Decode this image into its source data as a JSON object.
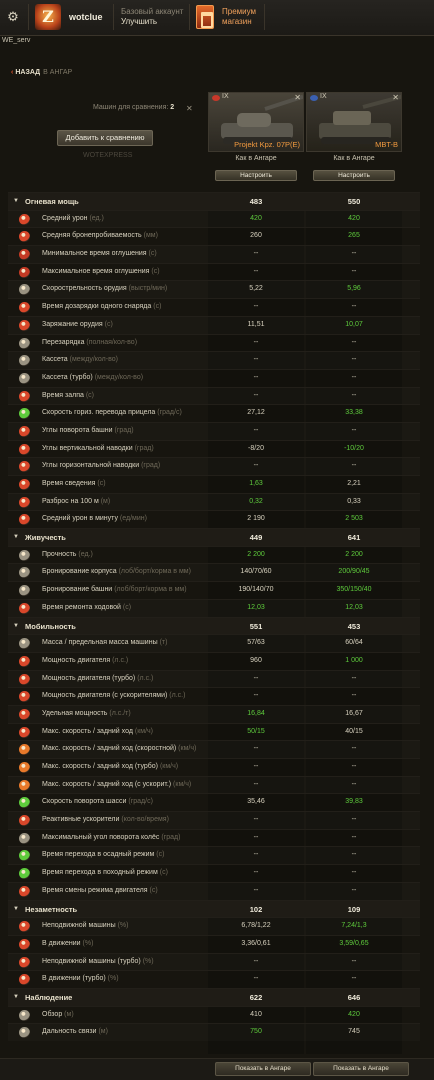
{
  "header": {
    "username": "wotclue",
    "account_line1": "Базовый аккаунт",
    "account_line2": "Улучшить",
    "premium_line1": "Премиум",
    "premium_line2": "магазин",
    "server": "WE_serv"
  },
  "nav": {
    "back": "НАЗАД",
    "back_target": "В АНГАР"
  },
  "compare": {
    "count_label": "Машин для сравнения:",
    "count": "2",
    "add_button": "Добавить к сравнению",
    "placeholder": "WOTEXPRESS"
  },
  "tanks": [
    {
      "name": "Projekt Kpz. 07P(E)",
      "tier": "IX",
      "status": "Как в Ангаре",
      "configure": "Настроить",
      "show": "Показать в Ангаре"
    },
    {
      "name": "MBT-B",
      "tier": "IX",
      "status": "Как в Ангаре",
      "configure": "Настроить",
      "show": "Показать в Ангаре"
    }
  ],
  "rows": [
    {
      "type": "section",
      "label": "Огневая мощь",
      "unit": "",
      "v1": "483",
      "v2": "550",
      "g1": false,
      "g2": false
    },
    {
      "type": "stat",
      "icon": "avg-damage-icon",
      "color": "#d9472a",
      "label": "Средний урон",
      "unit": "(ед.)",
      "v1": "420",
      "v2": "420",
      "g1": true,
      "g2": true
    },
    {
      "type": "stat",
      "icon": "penetration-icon",
      "color": "#d9472a",
      "label": "Средняя бронепробиваемость",
      "unit": "(мм)",
      "v1": "260",
      "v2": "265",
      "g1": false,
      "g2": true
    },
    {
      "type": "stat",
      "icon": "stun-min-icon",
      "color": "#c33a24",
      "label": "Минимальное время оглушения",
      "unit": "(с)",
      "v1": "--",
      "v2": "--",
      "g1": false,
      "g2": false
    },
    {
      "type": "stat",
      "icon": "stun-max-icon",
      "color": "#c33a24",
      "label": "Максимальное время оглушения",
      "unit": "(с)",
      "v1": "--",
      "v2": "--",
      "g1": false,
      "g2": false
    },
    {
      "type": "stat",
      "icon": "rate-of-fire-icon",
      "color": "#9a9382",
      "label": "Скорострельность орудия",
      "unit": "(выстр/мин)",
      "v1": "5,22",
      "v2": "5,96",
      "g1": false,
      "g2": true
    },
    {
      "type": "stat",
      "icon": "shell-reload-icon",
      "color": "#d9472a",
      "label": "Время дозарядки одного снаряда",
      "unit": "(с)",
      "v1": "--",
      "v2": "--",
      "g1": false,
      "g2": false
    },
    {
      "type": "stat",
      "icon": "reload-icon",
      "color": "#d9472a",
      "label": "Заряжание орудия",
      "unit": "(с)",
      "v1": "11,51",
      "v2": "10,07",
      "g1": false,
      "g2": true
    },
    {
      "type": "stat",
      "icon": "recharge-icon",
      "color": "#9a9382",
      "label": "Перезарядка",
      "unit": "(полная/кол-во)",
      "v1": "--",
      "v2": "--",
      "g1": false,
      "g2": false
    },
    {
      "type": "stat",
      "icon": "magazine-icon",
      "color": "#9a9382",
      "label": "Кассета",
      "unit": "(между/кол-во)",
      "v1": "--",
      "v2": "--",
      "g1": false,
      "g2": false
    },
    {
      "type": "stat",
      "icon": "magazine-turbo-icon",
      "color": "#9a9382",
      "label": "Кассета (турбо)",
      "unit": "(между/кол-во)",
      "v1": "--",
      "v2": "--",
      "g1": false,
      "g2": false
    },
    {
      "type": "stat",
      "icon": "salvo-time-icon",
      "color": "#d9472a",
      "label": "Время залпа",
      "unit": "(с)",
      "v1": "--",
      "v2": "--",
      "g1": false,
      "g2": false
    },
    {
      "type": "stat",
      "icon": "traverse-speed-icon",
      "color": "#5ecb3c",
      "label": "Скорость гориз. перевода прицела",
      "unit": "(град/с)",
      "v1": "27,12",
      "v2": "33,38",
      "g1": false,
      "g2": true
    },
    {
      "type": "stat",
      "icon": "turret-angles-icon",
      "color": "#d9472a",
      "label": "Углы поворота башни",
      "unit": "(град)",
      "v1": "--",
      "v2": "--",
      "g1": false,
      "g2": false
    },
    {
      "type": "stat",
      "icon": "vertical-angles-icon",
      "color": "#d9472a",
      "label": "Углы вертикальной наводки",
      "unit": "(град)",
      "v1": "-8/20",
      "v2": "-10/20",
      "g1": false,
      "g2": true
    },
    {
      "type": "stat",
      "icon": "horizontal-angles-icon",
      "color": "#d9472a",
      "label": "Углы горизонтальной наводки",
      "unit": "(град)",
      "v1": "--",
      "v2": "--",
      "g1": false,
      "g2": false
    },
    {
      "type": "stat",
      "icon": "aim-time-icon",
      "color": "#d9472a",
      "label": "Время сведения",
      "unit": "(с)",
      "v1": "1,63",
      "v2": "2,21",
      "g1": true,
      "g2": false
    },
    {
      "type": "stat",
      "icon": "dispersion-icon",
      "color": "#d9472a",
      "label": "Разброс на 100 м",
      "unit": "(м)",
      "v1": "0,32",
      "v2": "0,33",
      "g1": true,
      "g2": false
    },
    {
      "type": "stat",
      "icon": "dpm-icon",
      "color": "#d9472a",
      "label": "Средний урон в минуту",
      "unit": "(ед/мин)",
      "v1": "2 190",
      "v2": "2 503",
      "g1": false,
      "g2": true
    },
    {
      "type": "section",
      "label": "Живучесть",
      "unit": "",
      "v1": "449",
      "v2": "641",
      "g1": false,
      "g2": false
    },
    {
      "type": "stat",
      "icon": "hit-points-icon",
      "color": "#9a9382",
      "label": "Прочность",
      "unit": "(ед.)",
      "v1": "2 200",
      "v2": "2 200",
      "g1": true,
      "g2": true
    },
    {
      "type": "stat",
      "icon": "hull-armor-icon",
      "color": "#9a9382",
      "label": "Бронирование корпуса",
      "unit": "(лоб/борт/корма в мм)",
      "v1": "140/70/60",
      "v2": "200/90/45",
      "g1": false,
      "g2": true
    },
    {
      "type": "stat",
      "icon": "turret-armor-icon",
      "color": "#9a9382",
      "label": "Бронирование башни",
      "unit": "(лоб/борт/корма в мм)",
      "v1": "190/140/70",
      "v2": "350/150/40",
      "g1": false,
      "g2": true
    },
    {
      "type": "stat",
      "icon": "track-repair-icon",
      "color": "#d9472a",
      "label": "Время ремонта ходовой",
      "unit": "(с)",
      "v1": "12,03",
      "v2": "12,03",
      "g1": true,
      "g2": true
    },
    {
      "type": "section",
      "label": "Мобильность",
      "unit": "",
      "v1": "551",
      "v2": "453",
      "g1": false,
      "g2": false
    },
    {
      "type": "stat",
      "icon": "weight-icon",
      "color": "#9a9382",
      "label": "Масса / предельная масса машины",
      "unit": "(т)",
      "v1": "57/63",
      "v2": "60/64",
      "g1": false,
      "g2": false
    },
    {
      "type": "stat",
      "icon": "engine-power-icon",
      "color": "#d9472a",
      "label": "Мощность двигателя",
      "unit": "(л.с.)",
      "v1": "960",
      "v2": "1 000",
      "g1": false,
      "g2": true
    },
    {
      "type": "stat",
      "icon": "engine-turbo-icon",
      "color": "#d9472a",
      "label": "Мощность двигателя (турбо)",
      "unit": "(л.с.)",
      "v1": "--",
      "v2": "--",
      "g1": false,
      "g2": false
    },
    {
      "type": "stat",
      "icon": "engine-rocket-icon",
      "color": "#d9472a",
      "label": "Мощность двигателя (с ускорителями)",
      "unit": "(л.с.)",
      "v1": "--",
      "v2": "--",
      "g1": false,
      "g2": false
    },
    {
      "type": "stat",
      "icon": "specific-power-icon",
      "color": "#d9472a",
      "label": "Удельная мощность",
      "unit": "(л.с./т)",
      "v1": "16,84",
      "v2": "16,67",
      "g1": true,
      "g2": false
    },
    {
      "type": "stat",
      "icon": "speed-icon",
      "color": "#d9472a",
      "label": "Макс. скорость / задний ход",
      "unit": "(км/ч)",
      "v1": "50/15",
      "v2": "40/15",
      "g1": true,
      "g2": false
    },
    {
      "type": "stat",
      "icon": "speed-wheeled-icon",
      "color": "#e8792a",
      "label": "Макс. скорость / задний ход (скоростной)",
      "unit": "(км/ч)",
      "v1": "--",
      "v2": "--",
      "g1": false,
      "g2": false
    },
    {
      "type": "stat",
      "icon": "speed-turbo-icon",
      "color": "#e8792a",
      "label": "Макс. скорость / задний ход (турбо)",
      "unit": "(км/ч)",
      "v1": "--",
      "v2": "--",
      "g1": false,
      "g2": false
    },
    {
      "type": "stat",
      "icon": "speed-rocket-icon",
      "color": "#e8792a",
      "label": "Макс. скорость / задний ход (с ускорит.)",
      "unit": "(км/ч)",
      "v1": "--",
      "v2": "--",
      "g1": false,
      "g2": false
    },
    {
      "type": "stat",
      "icon": "hull-traverse-icon",
      "color": "#5ecb3c",
      "label": "Скорость поворота шасси",
      "unit": "(град/с)",
      "v1": "35,46",
      "v2": "39,83",
      "g1": false,
      "g2": true
    },
    {
      "type": "stat",
      "icon": "rocket-boosters-icon",
      "color": "#d9472a",
      "label": "Реактивные ускорители",
      "unit": "(кол-во/время)",
      "v1": "--",
      "v2": "--",
      "g1": false,
      "g2": false
    },
    {
      "type": "stat",
      "icon": "wheel-angle-icon",
      "color": "#9a9382",
      "label": "Максимальный угол поворота колёс",
      "unit": "(град)",
      "v1": "--",
      "v2": "--",
      "g1": false,
      "g2": false
    },
    {
      "type": "stat",
      "icon": "siege-mode-icon",
      "color": "#5ecb3c",
      "label": "Время перехода в осадный режим",
      "unit": "(с)",
      "v1": "--",
      "v2": "--",
      "g1": false,
      "g2": false
    },
    {
      "type": "stat",
      "icon": "travel-mode-icon",
      "color": "#5ecb3c",
      "label": "Время перехода в походный режим",
      "unit": "(с)",
      "v1": "--",
      "v2": "--",
      "g1": false,
      "g2": false
    },
    {
      "type": "stat",
      "icon": "engine-mode-icon",
      "color": "#d9472a",
      "label": "Время смены режима двигателя",
      "unit": "(с)",
      "v1": "--",
      "v2": "--",
      "g1": false,
      "g2": false
    },
    {
      "type": "section",
      "label": "Незаметность",
      "unit": "",
      "v1": "102",
      "v2": "109",
      "g1": false,
      "g2": false
    },
    {
      "type": "stat",
      "icon": "camo-still-icon",
      "color": "#d9472a",
      "label": "Неподвижной машины",
      "unit": "(%)",
      "v1": "6,78/1,22",
      "v2": "7,24/1,3",
      "g1": false,
      "g2": true
    },
    {
      "type": "stat",
      "icon": "camo-moving-icon",
      "color": "#d9472a",
      "label": "В движении",
      "unit": "(%)",
      "v1": "3,36/0,61",
      "v2": "3,59/0,65",
      "g1": false,
      "g2": true
    },
    {
      "type": "stat",
      "icon": "camo-still-turbo-icon",
      "color": "#d9472a",
      "label": "Неподвижной машины (турбо)",
      "unit": "(%)",
      "v1": "--",
      "v2": "--",
      "g1": false,
      "g2": false
    },
    {
      "type": "stat",
      "icon": "camo-moving-turbo-icon",
      "color": "#d9472a",
      "label": "В движении (турбо)",
      "unit": "(%)",
      "v1": "--",
      "v2": "--",
      "g1": false,
      "g2": false
    },
    {
      "type": "section",
      "label": "Наблюдение",
      "unit": "",
      "v1": "622",
      "v2": "646",
      "g1": false,
      "g2": false
    },
    {
      "type": "stat",
      "icon": "view-range-icon",
      "color": "#9a9382",
      "label": "Обзор",
      "unit": "(м)",
      "v1": "410",
      "v2": "420",
      "g1": false,
      "g2": true
    },
    {
      "type": "stat",
      "icon": "radio-range-icon",
      "color": "#9a9382",
      "label": "Дальность связи",
      "unit": "(м)",
      "v1": "750",
      "v2": "745",
      "g1": true,
      "g2": false
    }
  ],
  "colors": {
    "better": "#5ecb3c",
    "premium": "#f0a15c",
    "tank_name": "#f29a3f",
    "accent": "#e0522a"
  }
}
